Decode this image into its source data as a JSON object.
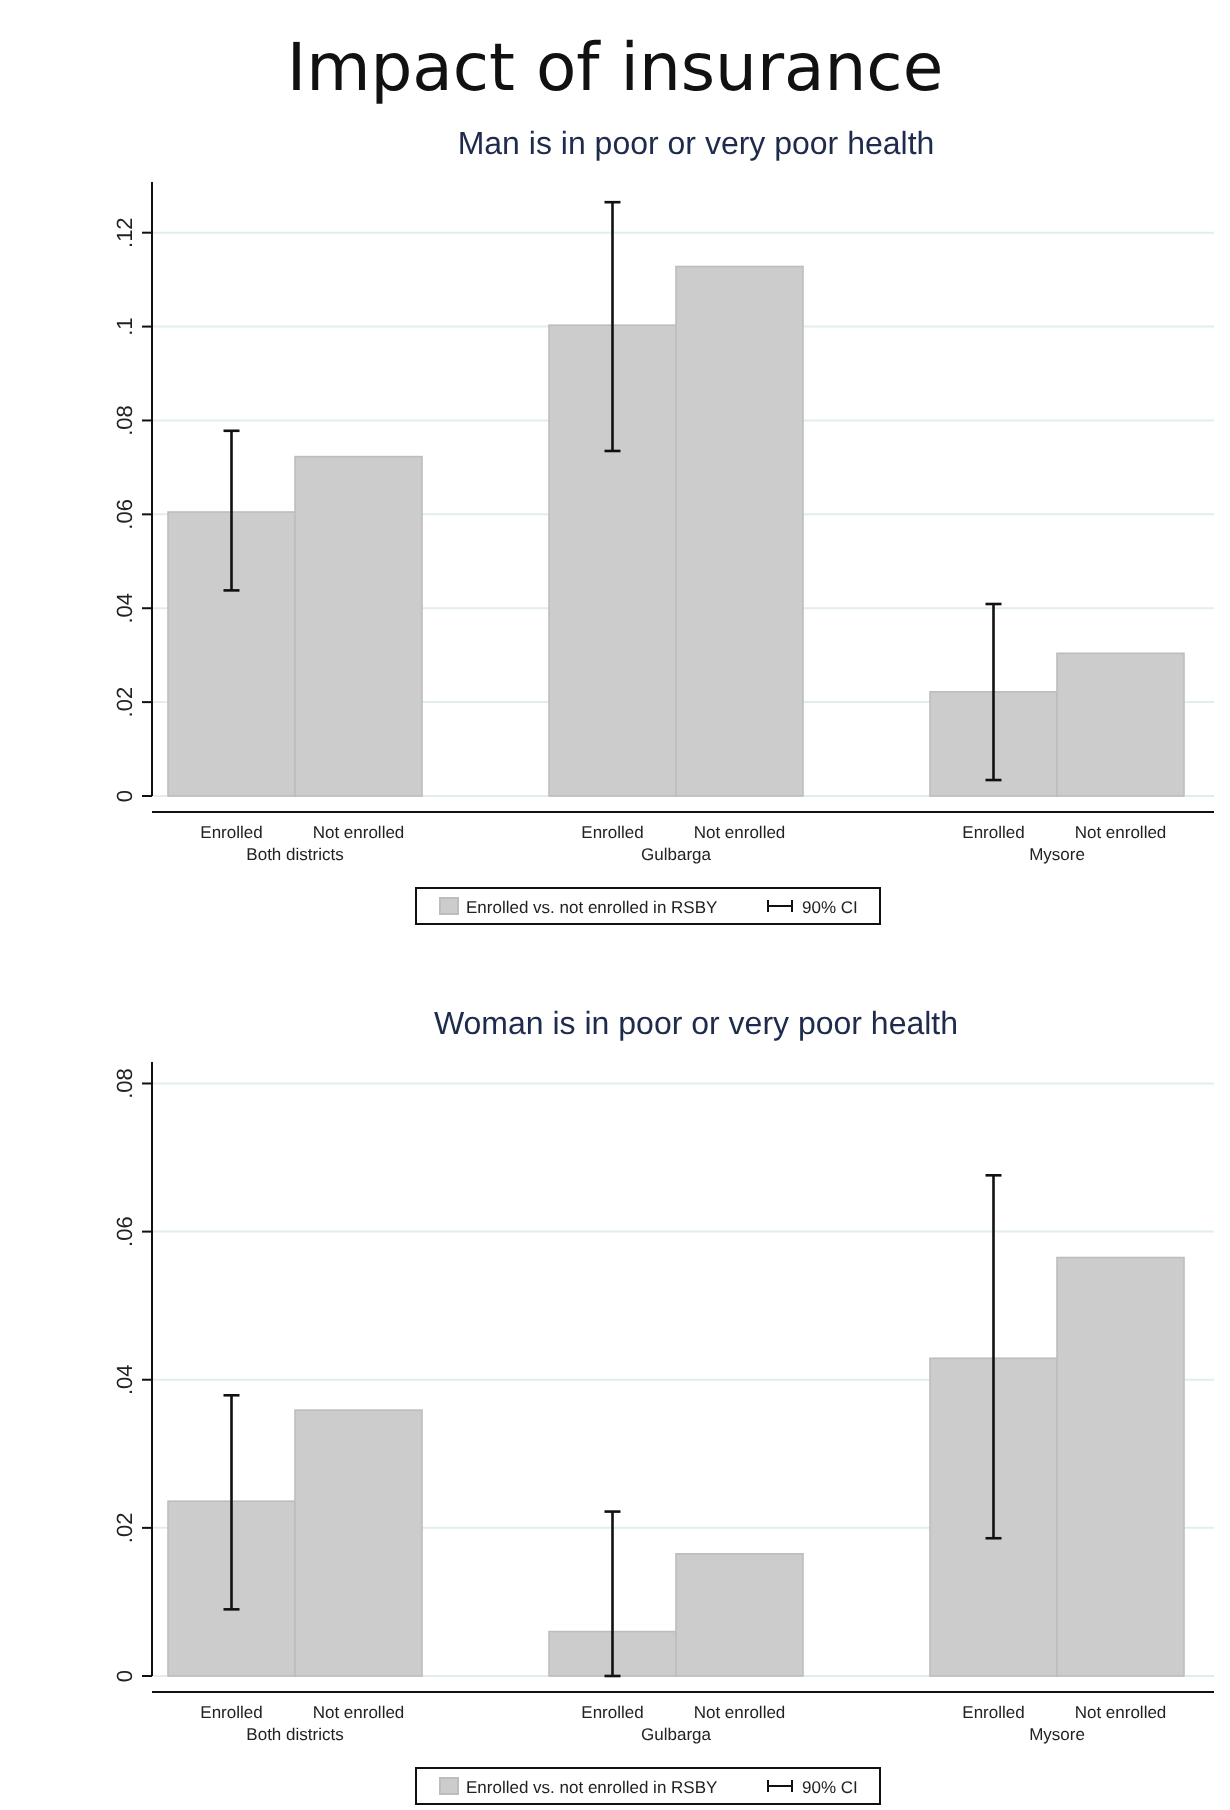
{
  "chart_data": [
    {
      "type": "bar",
      "title": "Impact of insurance",
      "subtitle": "Man is in poor or very poor health",
      "categories": [
        "Enrolled",
        "Not enrolled",
        null,
        "Enrolled",
        "Not enrolled",
        null,
        "Enrolled",
        "Not enrolled"
      ],
      "series": [
        {
          "name": "Enrolled vs. not enrolled in RSBY",
          "color": "#cccccc",
          "values": [
            0.0605,
            0.0723,
            null,
            0.1003,
            0.1128,
            null,
            0.0222,
            0.0304
          ],
          "errors": [
            [
              0.0438,
              0.0778
            ],
            null,
            null,
            [
              0.0735,
              0.1265
            ],
            null,
            null,
            [
              0.0034,
              0.0409
            ],
            null
          ]
        }
      ],
      "ylim": [
        0,
        0.1308
      ],
      "yticks": [
        {
          "value": 0,
          "label": "0"
        },
        {
          "value": 0.02,
          "label": ".02"
        },
        {
          "value": 0.04,
          "label": ".04"
        },
        {
          "value": 0.06,
          "label": ".06"
        },
        {
          "value": 0.08,
          "label": ".08"
        },
        {
          "value": 0.1,
          "label": ".1"
        },
        {
          "value": 0.12,
          "label": ".12"
        }
      ],
      "grid": "y",
      "legend": "bottom",
      "annotations": [
        "Both districts",
        "Gulbarga",
        "Mysore",
        "90% CI"
      ]
    },
    {
      "type": "bar",
      "title": "Woman is in poor or very poor health",
      "categories": [
        "Enrolled",
        "Not enrolled",
        null,
        "Enrolled",
        "Not enrolled",
        null,
        "Enrolled",
        "Not enrolled"
      ],
      "series": [
        {
          "name": "Enrolled vs. not enrolled in RSBY",
          "color": "#cccccc",
          "values": [
            0.0236,
            0.0359,
            null,
            0.006,
            0.0165,
            null,
            0.0429,
            0.0565
          ],
          "errors": [
            [
              0.009,
              0.0379
            ],
            null,
            null,
            [
              0,
              0.0222
            ],
            null,
            null,
            [
              0.0186,
              0.0676
            ],
            null
          ]
        }
      ],
      "ylim": [
        0,
        0.0829
      ],
      "yticks": [
        {
          "value": 0,
          "label": "0"
        },
        {
          "value": 0.02,
          "label": ".02"
        },
        {
          "value": 0.04,
          "label": ".04"
        },
        {
          "value": 0.06,
          "label": ".06"
        },
        {
          "value": 0.08,
          "label": ".08"
        }
      ],
      "grid": "y",
      "legend": "bottom",
      "annotations": [
        "Both districts",
        "Gulbarga",
        "Mysore",
        "90% CI"
      ]
    }
  ]
}
